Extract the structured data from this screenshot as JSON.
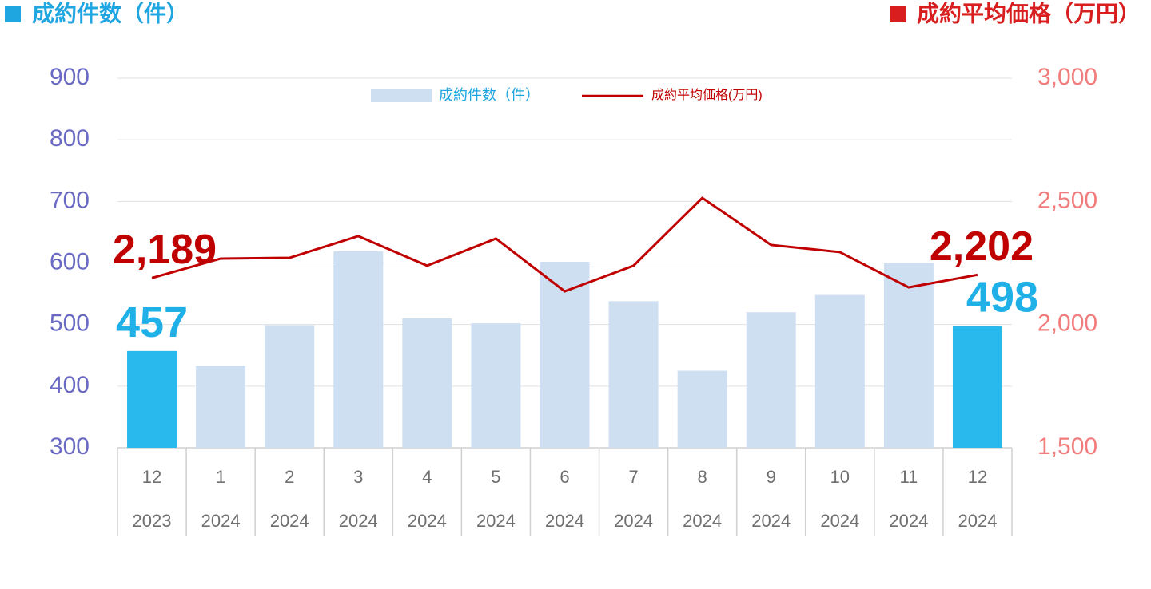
{
  "chart_data": {
    "type": "bar_line",
    "title_left": "成約件数（件）",
    "title_right": "成約平均価格（万円）",
    "categories": [
      "12",
      "1",
      "2",
      "3",
      "4",
      "5",
      "6",
      "7",
      "8",
      "9",
      "10",
      "11",
      "12"
    ],
    "category_years": [
      "2023",
      "2024",
      "2024",
      "2024",
      "2024",
      "2024",
      "2024",
      "2024",
      "2024",
      "2024",
      "2024",
      "2024",
      "2024"
    ],
    "series": [
      {
        "name": "成約件数（件）",
        "type": "bar",
        "color": "#cfdff2",
        "bar_colors": [
          "#29b9ec",
          "#cfdff2",
          "#cfdff2",
          "#cfdff2",
          "#cfdff2",
          "#cfdff2",
          "#cfdff2",
          "#cfdff2",
          "#cfdff2",
          "#cfdff2",
          "#cfdff2",
          "#cfdff2",
          "#29b9ec"
        ],
        "values": [
          457,
          433,
          499,
          619,
          510,
          502,
          602,
          538,
          425,
          520,
          548,
          600,
          498
        ],
        "value_labels": [
          "457",
          null,
          null,
          null,
          null,
          null,
          null,
          null,
          null,
          null,
          null,
          null,
          "498"
        ]
      },
      {
        "name": "成約平均価格(万円)",
        "type": "line",
        "axis": "y2",
        "color": "#c00000",
        "values": [
          2189,
          2268,
          2271,
          2359,
          2239,
          2349,
          2135,
          2239,
          2514,
          2323,
          2294,
          2151,
          2202
        ],
        "value_labels": [
          "2,189",
          null,
          null,
          null,
          null,
          null,
          null,
          null,
          null,
          null,
          null,
          null,
          "2,202"
        ]
      }
    ],
    "ylim": [
      300,
      900
    ],
    "yticks": [
      300,
      400,
      500,
      600,
      700,
      800,
      900
    ],
    "y2lim": [
      1500,
      3000
    ],
    "y2ticks": [
      {
        "value": 1500,
        "label": "1,500"
      },
      {
        "value": 2000,
        "label": "2,000"
      },
      {
        "value": 2500,
        "label": "2,500"
      },
      {
        "value": 3000,
        "label": "3,000"
      }
    ],
    "grid": true
  }
}
